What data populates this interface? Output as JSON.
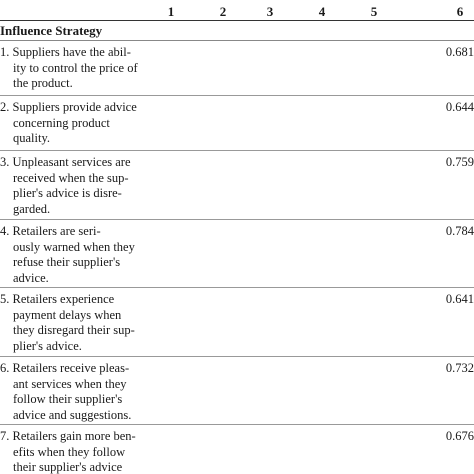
{
  "table": {
    "columns": [
      "1",
      "2",
      "3",
      "4",
      "5",
      "6"
    ],
    "section_title": "Influence Strategy",
    "rows": [
      {
        "lines": [
          "1. Suppliers have the abil-",
          "ity to control the price of",
          "the product."
        ],
        "value": "0.681"
      },
      {
        "lines": [
          "2. Suppliers provide advice",
          "concerning product",
          "quality."
        ],
        "value": "0.644"
      },
      {
        "lines": [
          "3. Unpleasant services are",
          "received when the sup-",
          "plier's advice is disre-",
          "garded."
        ],
        "value": "0.759"
      },
      {
        "lines": [
          "4. Retailers are seri-",
          "ously warned when they",
          "refuse their supplier's",
          "advice."
        ],
        "value": "0.784"
      },
      {
        "lines": [
          "5. Retailers experience",
          "payment delays when",
          "they disregard their sup-",
          "plier's advice."
        ],
        "value": "0.641"
      },
      {
        "lines": [
          "6. Retailers receive pleas-",
          "ant services when they",
          "follow their supplier's",
          "advice and suggestions."
        ],
        "value": "0.732"
      },
      {
        "lines": [
          "7. Retailers gain more ben-",
          "efits when they follow",
          "their supplier's advice"
        ],
        "value": "0.676"
      }
    ]
  }
}
